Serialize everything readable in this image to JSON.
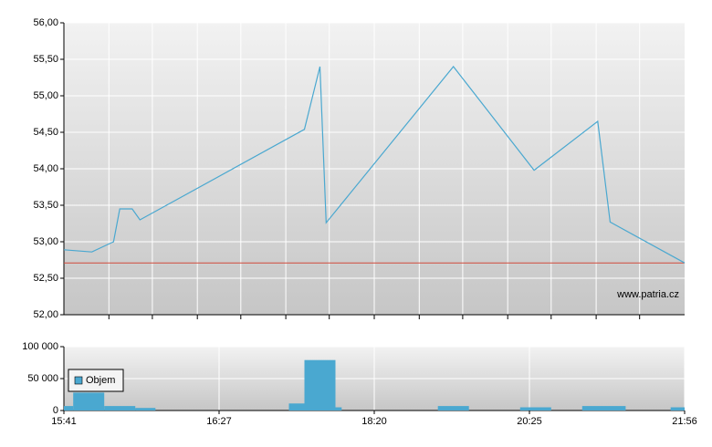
{
  "chart_data": [
    {
      "type": "line",
      "x": [
        0,
        0.18,
        0.32,
        0.36,
        0.44,
        0.49,
        1.55,
        1.65,
        1.69,
        2.51,
        3.03,
        3.44,
        3.52,
        4
      ],
      "values": [
        52.89,
        52.86,
        53.0,
        53.45,
        53.45,
        53.3,
        54.54,
        55.4,
        53.26,
        55.4,
        53.98,
        54.65,
        53.27,
        52.71
      ],
      "color": "#4aa8d0",
      "reference": 52.71,
      "reference_color": "#d04a3a",
      "xlim": [
        0,
        4
      ],
      "xgrid": [
        0.29,
        0.57,
        0.86,
        1.14,
        1.43,
        1.71,
        2,
        2.29,
        2.57,
        2.86,
        3.14,
        3.43,
        3.71
      ],
      "ylim": [
        52,
        56
      ],
      "yticks": [
        {
          "value": 52,
          "label": "52,00"
        },
        {
          "value": 52.5,
          "label": "52,50"
        },
        {
          "value": 53,
          "label": "53,00"
        },
        {
          "value": 53.5,
          "label": "53,50"
        },
        {
          "value": 54,
          "label": "54,00"
        },
        {
          "value": 54.5,
          "label": "54,50"
        },
        {
          "value": 55,
          "label": "55,00"
        },
        {
          "value": 55.5,
          "label": "55,50"
        },
        {
          "value": 56,
          "label": "56,00"
        }
      ],
      "grid": true,
      "watermark": "www.patria.cz"
    },
    {
      "type": "bar",
      "x_start": [
        0,
        0.06,
        0.26,
        0.46,
        1.45,
        1.55,
        1.75,
        2.41,
        2.94,
        3.34,
        3.91
      ],
      "x_end": [
        0.06,
        0.26,
        0.46,
        0.59,
        1.55,
        1.75,
        1.79,
        2.61,
        3.14,
        3.62,
        4
      ],
      "series": [
        {
          "name": "Objem",
          "color": "#4aa8d0",
          "values": [
            7000,
            28000,
            7000,
            4000,
            11000,
            79000,
            5000,
            7000,
            5000,
            7000,
            5000
          ]
        }
      ],
      "xlim": [
        0,
        4
      ],
      "xticks": [
        {
          "value": 0,
          "label": "15:41"
        },
        {
          "value": 1,
          "label": "16:27"
        },
        {
          "value": 2,
          "label": "18:20"
        },
        {
          "value": 3,
          "label": "20:25"
        },
        {
          "value": 4,
          "label": "21:56"
        }
      ],
      "ylim": [
        0,
        100000
      ],
      "yticks": [
        0,
        {
          "value": 50000,
          "label": "50 000"
        },
        {
          "value": 100000,
          "label": "100 000"
        }
      ],
      "grid": true,
      "legend": "upper-left"
    }
  ]
}
